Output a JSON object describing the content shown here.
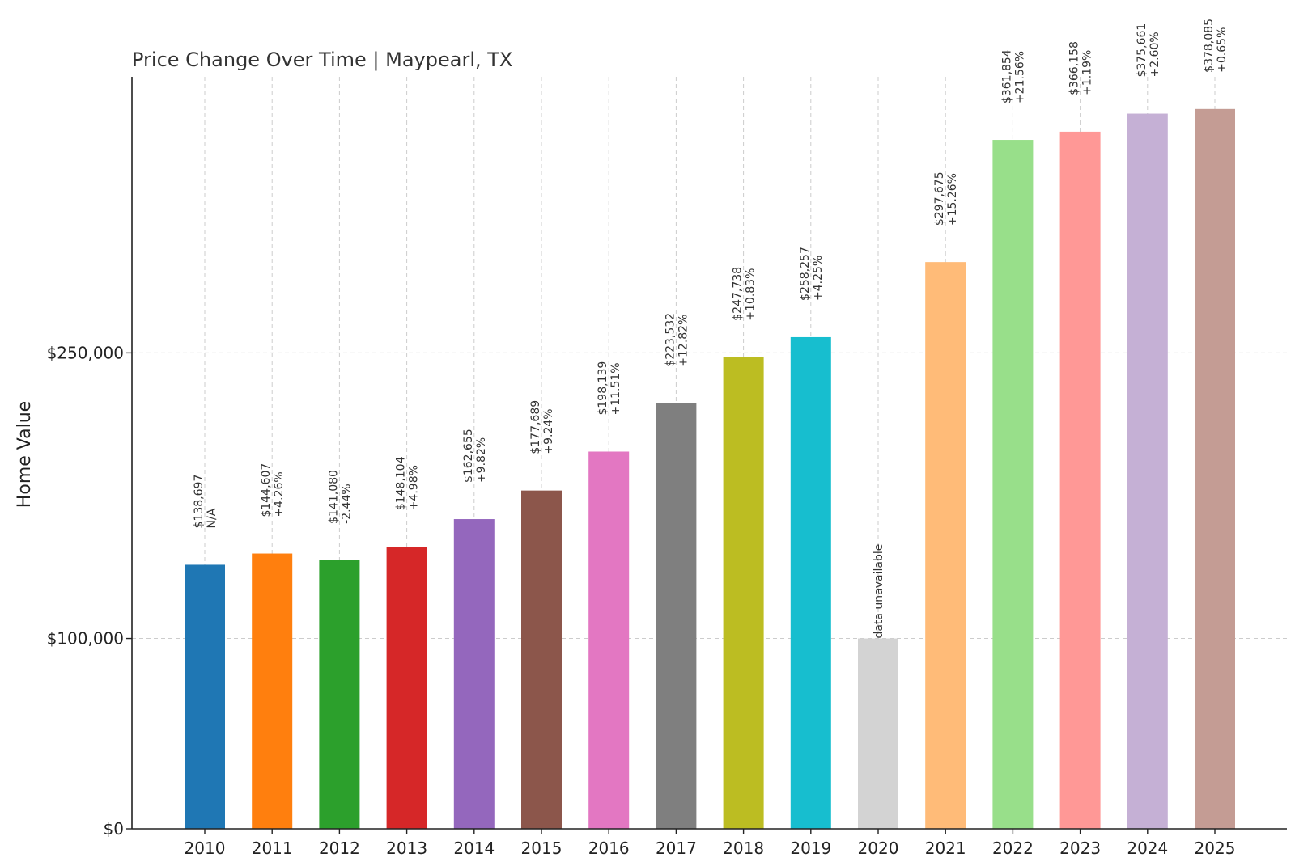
{
  "chart_data": {
    "type": "bar",
    "title": "Price Change Over Time | Maypearl, TX",
    "xlabel": "",
    "ylabel": "Home Value",
    "categories": [
      "2010",
      "2011",
      "2012",
      "2013",
      "2014",
      "2015",
      "2016",
      "2017",
      "2018",
      "2019",
      "2020",
      "2021",
      "2022",
      "2023",
      "2024",
      "2025"
    ],
    "values": [
      138697,
      144607,
      141080,
      148104,
      162655,
      177689,
      198139,
      223532,
      247738,
      258257,
      100000,
      297675,
      361854,
      366158,
      375661,
      378085
    ],
    "value_labels": [
      "$138,697",
      "$144,607",
      "$141,080",
      "$148,104",
      "$162,655",
      "$177,689",
      "$198,139",
      "$223,532",
      "$247,738",
      "$258,257",
      "",
      "$297,675",
      "$361,854",
      "$366,158",
      "$375,661",
      "$378,085"
    ],
    "change_labels": [
      "N/A",
      "+4.26%",
      "-2.44%",
      "+4.98%",
      "+9.82%",
      "+9.24%",
      "+11.51%",
      "+12.82%",
      "+10.83%",
      "+4.25%",
      "",
      "+15.26%",
      "+21.56%",
      "+1.19%",
      "+2.60%",
      "+0.65%"
    ],
    "unavailable_label": "data unavailable",
    "colors": [
      "#1f77b4",
      "#ff7f0e",
      "#2ca02c",
      "#d62728",
      "#9467bd",
      "#8c564b",
      "#e377c2",
      "#7f7f7f",
      "#bcbd22",
      "#17becf",
      "#d3d3d3",
      "#ffbb78",
      "#98df8a",
      "#ff9896",
      "#c5b0d5",
      "#c49c94"
    ],
    "yticks": [
      0,
      100000,
      250000
    ],
    "ytick_labels": [
      "$0",
      "$100,000",
      "$250,000"
    ],
    "ylim": [
      0,
      395000
    ],
    "grid": true
  }
}
